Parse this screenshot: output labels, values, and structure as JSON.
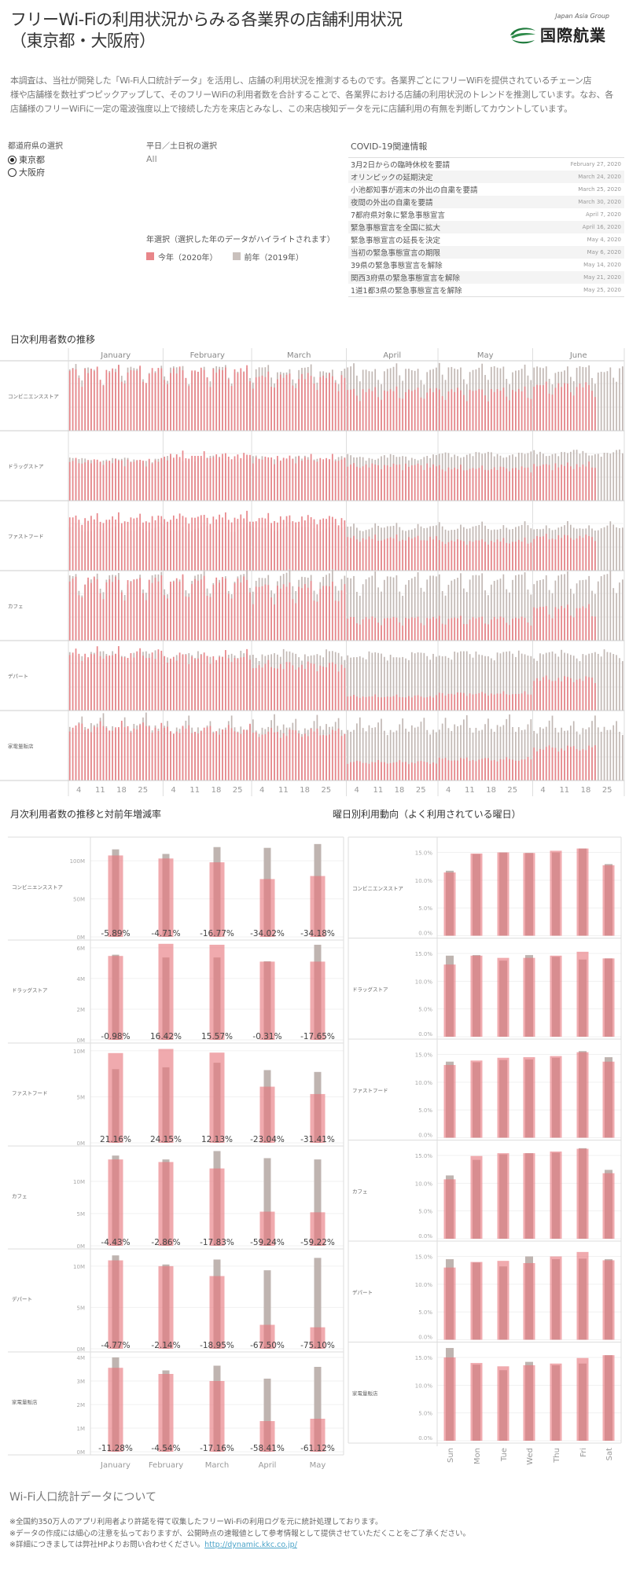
{
  "header": {
    "title_line1": "フリーWi-Fiの利用状況からみる各業界の店舗利用状況",
    "title_line2": "（東京都・大阪府）",
    "logo_group": "Japan Asia Group",
    "logo_name": "国際航業"
  },
  "intro": {
    "lines": [
      "本調査は、当社が開発した「Wi-Fi人口統計データ」を活用し、店舗の利用状況を推測するものです。各業界ごとにフリーWiFiを提供されているチェーン店",
      "様や店舗様を数社ずつピックアップして、そのフリーWiFiの利用者数を合計することで、各業界における店舗の利用状況のトレンドを推測しています。なお、各",
      "店舗様のフリーWiFiに一定の電波強度以上で接続した方を来店とみなし、この来店検知データを元に店舗利用の有無を判断してカウントしています。"
    ]
  },
  "filters": {
    "prefecture": {
      "label": "都道府県の選択",
      "options": [
        {
          "label": "東京都",
          "selected": true
        },
        {
          "label": "大阪府",
          "selected": false
        }
      ]
    },
    "daytype": {
      "label": "平日／土日祝の選択",
      "value": "All"
    },
    "year": {
      "label": "年選択（選択した年のデータがハイライトされます）",
      "legend": [
        {
          "label": "今年（2020年）",
          "color": "#e8868a"
        },
        {
          "label": "前年（2019年）",
          "color": "#c9c0bc"
        }
      ]
    }
  },
  "covid": {
    "title": "COVID-19関連情報",
    "events": [
      {
        "text": "3月2日からの臨時休校を要請",
        "date": "February 27, 2020"
      },
      {
        "text": "オリンピックの延期決定",
        "date": "March 24, 2020"
      },
      {
        "text": "小池都知事が週末の外出の自粛を要請",
        "date": "March 25, 2020"
      },
      {
        "text": "夜間の外出の自粛を要請",
        "date": "March 30, 2020"
      },
      {
        "text": "7都府県対象に緊急事態宣言",
        "date": "April 7, 2020"
      },
      {
        "text": "緊急事態宣言を全国に拡大",
        "date": "April 16, 2020"
      },
      {
        "text": "緊急事態宣言の延長を決定",
        "date": "May 4, 2020"
      },
      {
        "text": "当初の緊急事態宣言の期限",
        "date": "May 6, 2020"
      },
      {
        "text": "39県の緊急事態宣言を解除",
        "date": "May 14, 2020"
      },
      {
        "text": "関西3府県の緊急事態宣言を解除",
        "date": "May 21, 2020"
      },
      {
        "text": "1道1都3県の緊急事態宣言を解除",
        "date": "May 25, 2020"
      }
    ]
  },
  "sections": {
    "daily_title": "日次利用者数の推移",
    "monthly_title": "月次利用者数の推移と対前年増減率",
    "weekday_title": "曜日別利用動向（よく利用されている曜日）"
  },
  "footer": {
    "title": "Wi-Fi人口統計データについて",
    "notes": [
      "※全国約350万人のアプリ利用者より許諾を得て収集したフリーWi-Fiの利用ログを元に統計処理しております。",
      "※データの作成には細心の注意を払っておりますが、公開時点の速報値として参考情報として提供させていただくことをご了承ください。"
    ],
    "link_prefix": "※詳細につきましては弊社HPよりお問い合わせください。",
    "link": "http://dynamic.kkc.co.jp/"
  },
  "colors": {
    "current_year": "#e8868a",
    "previous_year": "#c2b8b4"
  },
  "chart_data": [
    {
      "type": "bar",
      "title": "日次利用者数の推移",
      "months": [
        "January",
        "February",
        "March",
        "April",
        "May",
        "June"
      ],
      "month_days": [
        31,
        29,
        31,
        30,
        31,
        30
      ],
      "day_ticks": [
        "4",
        "11",
        "18",
        "25"
      ],
      "days_with_2020_data": 173,
      "note": "relative daily level index (0-1) per month",
      "categories": [
        "コンビニエンスストア",
        "ドラッグストア",
        "ファストフード",
        "カフェ",
        "デパート",
        "家電量販店"
      ],
      "series": [
        {
          "name": "2019",
          "levels": [
            [
              0.84,
              0.84,
              0.83,
              0.84,
              0.85,
              0.84
            ],
            [
              0.58,
              0.6,
              0.6,
              0.62,
              0.66,
              0.68
            ],
            [
              0.6,
              0.6,
              0.62,
              0.62,
              0.62,
              0.62
            ],
            [
              0.84,
              0.84,
              0.86,
              0.84,
              0.84,
              0.84
            ],
            [
              0.8,
              0.78,
              0.8,
              0.78,
              0.8,
              0.8
            ],
            [
              0.8,
              0.76,
              0.78,
              0.76,
              0.78,
              0.76
            ]
          ]
        },
        {
          "name": "2020",
          "levels": [
            [
              0.82,
              0.82,
              0.74,
              0.55,
              0.55,
              0.62
            ],
            [
              0.56,
              0.64,
              0.6,
              0.5,
              0.46,
              0.5
            ],
            [
              0.74,
              0.76,
              0.74,
              0.46,
              0.42,
              0.48
            ],
            [
              0.8,
              0.8,
              0.72,
              0.3,
              0.3,
              0.44
            ],
            [
              0.8,
              0.76,
              0.64,
              0.2,
              0.24,
              0.45
            ],
            [
              0.76,
              0.72,
              0.68,
              0.26,
              0.3,
              0.46
            ]
          ]
        }
      ]
    },
    {
      "type": "bar",
      "title": "月次利用者数の推移と対前年増減率",
      "categories": [
        "January",
        "February",
        "March",
        "April",
        "May"
      ],
      "panels": [
        {
          "name": "コンビニエンスストア",
          "unit": "M",
          "ylim": [
            0,
            127
          ],
          "ticks": [
            0,
            50,
            100
          ],
          "y2020": [
            107,
            103,
            98,
            76,
            80
          ],
          "y2019": [
            115,
            109,
            118,
            117,
            122
          ],
          "change": [
            "-5.89%",
            "-4.71%",
            "-16.77%",
            "-34.02%",
            "-34.18%"
          ]
        },
        {
          "name": "ドラッグストア",
          "unit": "M",
          "ylim": [
            0,
            6.3
          ],
          "ticks": [
            0,
            2,
            4,
            6
          ],
          "y2020": [
            5.47,
            6.26,
            6.2,
            5.1,
            5.1
          ],
          "y2019": [
            5.55,
            5.37,
            5.37,
            5.12,
            6.2
          ],
          "change": [
            "-0.98%",
            "16.42%",
            "15.57%",
            "-0.31%",
            "-17.65%"
          ]
        },
        {
          "name": "ファストフード",
          "unit": "M",
          "ylim": [
            0,
            10.5
          ],
          "ticks": [
            0,
            5,
            10
          ],
          "y2020": [
            9.75,
            10.2,
            9.8,
            6.1,
            5.3
          ],
          "y2019": [
            8.0,
            8.2,
            8.7,
            7.9,
            7.7
          ],
          "change": [
            "21.16%",
            "24.15%",
            "12.13%",
            "-23.04%",
            "-31.41%"
          ]
        },
        {
          "name": "カフェ",
          "unit": "M",
          "ylim": [
            0,
            15
          ],
          "ticks": [
            0,
            5,
            10
          ],
          "y2020": [
            13.4,
            13.0,
            12.0,
            5.3,
            5.2
          ],
          "y2019": [
            14.0,
            13.4,
            14.7,
            13.6,
            13.4
          ],
          "change": [
            "-4.43%",
            "-2.86%",
            "-17.83%",
            "-59.24%",
            "-59.22%"
          ]
        },
        {
          "name": "デパート",
          "unit": "M",
          "ylim": [
            0,
            11.7
          ],
          "ticks": [
            0,
            5,
            10
          ],
          "y2020": [
            10.7,
            10.0,
            8.8,
            2.9,
            2.6
          ],
          "y2019": [
            11.3,
            10.2,
            10.8,
            9.5,
            11.0
          ],
          "change": [
            "-4.77%",
            "-2.14%",
            "-18.95%",
            "-67.50%",
            "-75.10%"
          ]
        },
        {
          "name": "家電量販店",
          "unit": "M",
          "ylim": [
            0,
            4.1
          ],
          "ticks": [
            0,
            1,
            2,
            3,
            4
          ],
          "y2020": [
            3.56,
            3.3,
            3.0,
            1.3,
            1.4
          ],
          "y2019": [
            4.0,
            3.45,
            3.65,
            3.1,
            3.6
          ],
          "change": [
            "-11.28%",
            "-4.54%",
            "-17.16%",
            "-58.41%",
            "-61.12%"
          ]
        }
      ]
    },
    {
      "type": "bar",
      "title": "曜日別利用動向（よく利用されている曜日）",
      "categories": [
        "Sun",
        "Mon",
        "Tue",
        "Wed",
        "Thu",
        "Fri",
        "Sat"
      ],
      "ylim": [
        0,
        17.8
      ],
      "ticks": [
        "0.0%",
        "5.0%",
        "10.0%",
        "15.0%"
      ],
      "tick_values": [
        0,
        5,
        10,
        15
      ],
      "panels": [
        {
          "name": "コンビニエンスストア",
          "y2020": [
            11.4,
            14.8,
            15.0,
            14.9,
            15.3,
            15.7,
            12.7
          ],
          "y2019": [
            11.7,
            14.7,
            15.0,
            14.9,
            15.0,
            15.7,
            12.9
          ]
        },
        {
          "name": "ドラッグストア",
          "y2020": [
            13.0,
            14.6,
            14.2,
            14.2,
            14.6,
            15.3,
            14.1
          ],
          "y2019": [
            14.6,
            14.7,
            13.7,
            14.7,
            14.4,
            13.9,
            14.1
          ]
        },
        {
          "name": "ファストフード",
          "y2020": [
            13.1,
            13.9,
            14.4,
            14.5,
            14.7,
            15.4,
            13.7
          ],
          "y2019": [
            13.7,
            13.6,
            14.0,
            14.1,
            14.4,
            15.6,
            14.5
          ]
        },
        {
          "name": "カフェ",
          "y2020": [
            10.7,
            14.9,
            15.4,
            15.4,
            15.7,
            16.2,
            11.8
          ],
          "y2019": [
            11.4,
            14.2,
            15.2,
            15.4,
            15.5,
            16.3,
            12.4
          ]
        },
        {
          "name": "デパート",
          "y2020": [
            13.0,
            14.0,
            14.2,
            13.8,
            15.0,
            15.8,
            14.3
          ],
          "y2019": [
            14.5,
            13.9,
            13.2,
            15.0,
            14.5,
            14.6,
            14.5
          ]
        },
        {
          "name": "家電量販店",
          "y2020": [
            15.0,
            14.0,
            13.4,
            13.6,
            13.9,
            14.9,
            15.4
          ],
          "y2019": [
            16.7,
            13.7,
            12.7,
            14.2,
            13.6,
            13.9,
            15.4
          ]
        }
      ]
    }
  ]
}
